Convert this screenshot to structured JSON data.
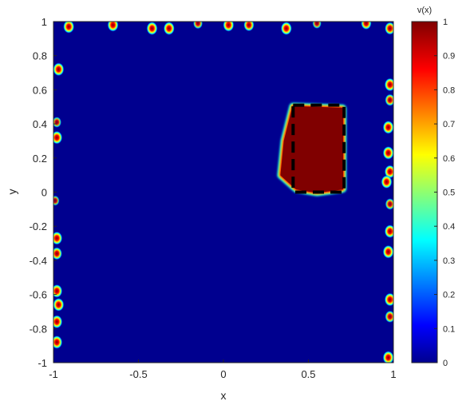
{
  "chart_data": {
    "type": "heatmap",
    "title": "",
    "xlabel": "x",
    "ylabel": "y",
    "xlim": [
      -1,
      1
    ],
    "ylim": [
      -1,
      1
    ],
    "x_ticks": [
      "-1",
      "-0.5",
      "0",
      "0.5",
      "1"
    ],
    "y_ticks": [
      "1",
      "0.8",
      "0.6",
      "0.4",
      "0.2",
      "0",
      "-0.2",
      "-0.4",
      "-0.6",
      "-0.8",
      "-1"
    ],
    "colormap": "jet",
    "colorbar": {
      "label": "v(x)",
      "range": [
        0,
        1
      ],
      "ticks": [
        "1",
        "0.9",
        "0.8",
        "0.7",
        "0.6",
        "0.5",
        "0.4",
        "0.3",
        "0.2",
        "0.1",
        "0"
      ]
    },
    "grid": false,
    "background_value": 0,
    "main_region": {
      "value": 1,
      "polygon": [
        [
          0.41,
          0.5
        ],
        [
          0.7,
          0.49
        ],
        [
          0.7,
          0.02
        ],
        [
          0.55,
          0.0
        ],
        [
          0.43,
          0.02
        ],
        [
          0.34,
          0.1
        ],
        [
          0.36,
          0.3
        ]
      ]
    },
    "dashed_box": {
      "x": [
        0.41,
        0.71
      ],
      "y": [
        0.0,
        0.51
      ],
      "style": "black dashed"
    },
    "edge_blobs": [
      {
        "x": -0.91,
        "y": 0.97,
        "value": 1
      },
      {
        "x": -0.65,
        "y": 0.98,
        "value": 1
      },
      {
        "x": -0.42,
        "y": 0.96,
        "value": 1
      },
      {
        "x": -0.32,
        "y": 0.96,
        "value": 1
      },
      {
        "x": -0.15,
        "y": 0.99,
        "value": 0.7
      },
      {
        "x": 0.03,
        "y": 0.98,
        "value": 1
      },
      {
        "x": 0.15,
        "y": 0.98,
        "value": 0.9
      },
      {
        "x": 0.37,
        "y": 0.96,
        "value": 1
      },
      {
        "x": 0.55,
        "y": 0.99,
        "value": 0.6
      },
      {
        "x": 0.84,
        "y": 0.99,
        "value": 0.9
      },
      {
        "x": 0.98,
        "y": 0.96,
        "value": 0.9
      },
      {
        "x": -0.97,
        "y": 0.72,
        "value": 1
      },
      {
        "x": -0.98,
        "y": 0.41,
        "value": 0.6
      },
      {
        "x": -0.98,
        "y": 0.32,
        "value": 1
      },
      {
        "x": -0.99,
        "y": -0.05,
        "value": 0.5
      },
      {
        "x": -0.98,
        "y": -0.27,
        "value": 1
      },
      {
        "x": -0.98,
        "y": -0.36,
        "value": 0.9
      },
      {
        "x": -0.98,
        "y": -0.58,
        "value": 1
      },
      {
        "x": -0.97,
        "y": -0.66,
        "value": 1
      },
      {
        "x": -0.98,
        "y": -0.76,
        "value": 1
      },
      {
        "x": -0.98,
        "y": -0.88,
        "value": 1
      },
      {
        "x": 0.98,
        "y": 0.63,
        "value": 1
      },
      {
        "x": 0.98,
        "y": 0.54,
        "value": 0.8
      },
      {
        "x": 0.97,
        "y": 0.38,
        "value": 1
      },
      {
        "x": 0.97,
        "y": 0.23,
        "value": 1
      },
      {
        "x": 0.98,
        "y": 0.12,
        "value": 1
      },
      {
        "x": 0.96,
        "y": 0.06,
        "value": 1
      },
      {
        "x": 0.98,
        "y": -0.07,
        "value": 0.7
      },
      {
        "x": 0.98,
        "y": -0.23,
        "value": 1
      },
      {
        "x": 0.97,
        "y": -0.35,
        "value": 1
      },
      {
        "x": 0.98,
        "y": -0.63,
        "value": 1
      },
      {
        "x": 0.98,
        "y": -0.73,
        "value": 0.8
      },
      {
        "x": 0.97,
        "y": -0.97,
        "value": 1
      }
    ]
  }
}
